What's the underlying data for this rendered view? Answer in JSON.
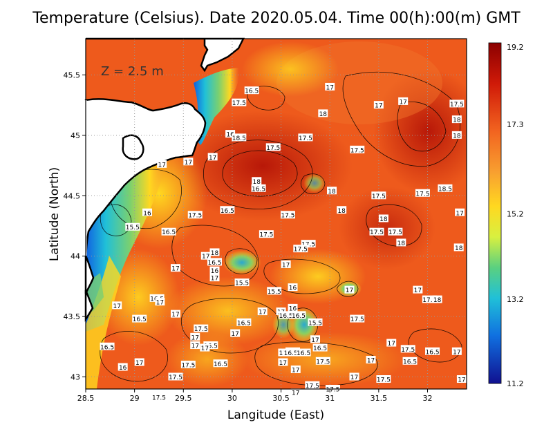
{
  "title": "Temperature (Celsius). Date 2020.05.04. Time 00(h):00(m) GMT",
  "depth_label": "Z = 2.5 m",
  "x_axis": {
    "label": "Langitude (East)",
    "ticks": [
      "28.5",
      "29",
      "29.5",
      "30",
      "30.5",
      "31",
      "31.5",
      "32"
    ],
    "range": [
      28.5,
      32.4
    ]
  },
  "y_axis": {
    "label": "Latitude (North)",
    "ticks": [
      "43",
      "43.5",
      "44",
      "44.5",
      "45",
      "45.5"
    ],
    "range": [
      42.9,
      45.8
    ]
  },
  "colorbar": {
    "ticks": [
      "19.2",
      "17.3",
      "15.2",
      "13.2",
      "11.2"
    ],
    "min": 11.2,
    "max": 19.2,
    "colors": [
      "#8b0000",
      "#d01a08",
      "#f26420",
      "#f8a030",
      "#ffd820",
      "#d8f040",
      "#5ad080",
      "#20c0d8",
      "#1070e0",
      "#101090"
    ]
  },
  "contour_labels": [
    {
      "lon": 30.2,
      "lat": 45.37,
      "text": "16.5"
    },
    {
      "lon": 31.0,
      "lat": 45.4,
      "text": "17"
    },
    {
      "lon": 30.07,
      "lat": 45.27,
      "text": "17.5"
    },
    {
      "lon": 31.5,
      "lat": 45.25,
      "text": "17"
    },
    {
      "lon": 31.75,
      "lat": 45.28,
      "text": "17"
    },
    {
      "lon": 32.3,
      "lat": 45.26,
      "text": "17.5"
    },
    {
      "lon": 30.93,
      "lat": 45.18,
      "text": "18"
    },
    {
      "lon": 32.3,
      "lat": 45.13,
      "text": "18"
    },
    {
      "lon": 29.98,
      "lat": 45.01,
      "text": "16"
    },
    {
      "lon": 30.07,
      "lat": 44.98,
      "text": "18.5"
    },
    {
      "lon": 30.75,
      "lat": 44.98,
      "text": "17.5"
    },
    {
      "lon": 32.3,
      "lat": 45.0,
      "text": "18"
    },
    {
      "lon": 30.42,
      "lat": 44.9,
      "text": "17.5"
    },
    {
      "lon": 31.28,
      "lat": 44.88,
      "text": "17.5"
    },
    {
      "lon": 29.8,
      "lat": 44.82,
      "text": "17"
    },
    {
      "lon": 29.55,
      "lat": 44.78,
      "text": "17"
    },
    {
      "lon": 29.28,
      "lat": 44.76,
      "text": "17"
    },
    {
      "lon": 30.25,
      "lat": 44.62,
      "text": "18"
    },
    {
      "lon": 30.27,
      "lat": 44.56,
      "text": "16.5"
    },
    {
      "lon": 31.02,
      "lat": 44.54,
      "text": "18"
    },
    {
      "lon": 31.5,
      "lat": 44.5,
      "text": "17.5"
    },
    {
      "lon": 31.95,
      "lat": 44.52,
      "text": "17.5"
    },
    {
      "lon": 32.18,
      "lat": 44.56,
      "text": "18.5"
    },
    {
      "lon": 29.13,
      "lat": 44.36,
      "text": "16"
    },
    {
      "lon": 29.62,
      "lat": 44.34,
      "text": "17.5"
    },
    {
      "lon": 29.95,
      "lat": 44.38,
      "text": "16.5"
    },
    {
      "lon": 30.57,
      "lat": 44.34,
      "text": "17.5"
    },
    {
      "lon": 31.12,
      "lat": 44.38,
      "text": "18"
    },
    {
      "lon": 31.55,
      "lat": 44.31,
      "text": "18"
    },
    {
      "lon": 32.33,
      "lat": 44.36,
      "text": "17"
    },
    {
      "lon": 28.98,
      "lat": 44.24,
      "text": "15.5"
    },
    {
      "lon": 29.35,
      "lat": 44.2,
      "text": "16.5"
    },
    {
      "lon": 30.35,
      "lat": 44.18,
      "text": "17.5"
    },
    {
      "lon": 31.48,
      "lat": 44.2,
      "text": "17.5"
    },
    {
      "lon": 31.67,
      "lat": 44.2,
      "text": "17.5"
    },
    {
      "lon": 31.73,
      "lat": 44.11,
      "text": "18"
    },
    {
      "lon": 30.78,
      "lat": 44.1,
      "text": "17.5"
    },
    {
      "lon": 30.7,
      "lat": 44.06,
      "text": "17.5"
    },
    {
      "lon": 29.82,
      "lat": 44.03,
      "text": "18"
    },
    {
      "lon": 29.73,
      "lat": 44.0,
      "text": "17"
    },
    {
      "lon": 32.32,
      "lat": 44.07,
      "text": "18"
    },
    {
      "lon": 29.82,
      "lat": 43.95,
      "text": "16.5"
    },
    {
      "lon": 30.55,
      "lat": 43.93,
      "text": "17"
    },
    {
      "lon": 29.42,
      "lat": 43.9,
      "text": "17"
    },
    {
      "lon": 29.82,
      "lat": 43.88,
      "text": "16"
    },
    {
      "lon": 29.82,
      "lat": 43.82,
      "text": "17"
    },
    {
      "lon": 30.1,
      "lat": 43.78,
      "text": "15.5"
    },
    {
      "lon": 30.43,
      "lat": 43.71,
      "text": "15.5"
    },
    {
      "lon": 30.62,
      "lat": 43.74,
      "text": "16"
    },
    {
      "lon": 31.2,
      "lat": 43.72,
      "text": "17"
    },
    {
      "lon": 31.9,
      "lat": 43.72,
      "text": "17"
    },
    {
      "lon": 29.23,
      "lat": 43.65,
      "text": "16.5"
    },
    {
      "lon": 29.26,
      "lat": 43.62,
      "text": "17"
    },
    {
      "lon": 32.02,
      "lat": 43.64,
      "text": "17.5"
    },
    {
      "lon": 32.1,
      "lat": 43.64,
      "text": "18"
    },
    {
      "lon": 28.82,
      "lat": 43.59,
      "text": "17"
    },
    {
      "lon": 30.62,
      "lat": 43.57,
      "text": "16"
    },
    {
      "lon": 30.5,
      "lat": 43.54,
      "text": "17"
    },
    {
      "lon": 30.31,
      "lat": 43.54,
      "text": "17"
    },
    {
      "lon": 30.55,
      "lat": 43.51,
      "text": "16.5"
    },
    {
      "lon": 30.68,
      "lat": 43.51,
      "text": "16.5"
    },
    {
      "lon": 29.42,
      "lat": 43.52,
      "text": "17"
    },
    {
      "lon": 29.05,
      "lat": 43.48,
      "text": "16.5"
    },
    {
      "lon": 31.28,
      "lat": 43.48,
      "text": "17.5"
    },
    {
      "lon": 30.12,
      "lat": 43.45,
      "text": "16.5"
    },
    {
      "lon": 30.85,
      "lat": 43.45,
      "text": "15.5"
    },
    {
      "lon": 29.68,
      "lat": 43.4,
      "text": "17.5"
    },
    {
      "lon": 30.03,
      "lat": 43.36,
      "text": "17"
    },
    {
      "lon": 30.85,
      "lat": 43.31,
      "text": "17"
    },
    {
      "lon": 29.62,
      "lat": 43.33,
      "text": "17"
    },
    {
      "lon": 31.63,
      "lat": 43.28,
      "text": "17"
    },
    {
      "lon": 28.72,
      "lat": 43.25,
      "text": "16.5"
    },
    {
      "lon": 29.62,
      "lat": 43.26,
      "text": "17"
    },
    {
      "lon": 29.78,
      "lat": 43.26,
      "text": "16.5"
    },
    {
      "lon": 29.72,
      "lat": 43.24,
      "text": "17"
    },
    {
      "lon": 30.9,
      "lat": 43.24,
      "text": "16.5"
    },
    {
      "lon": 31.8,
      "lat": 43.23,
      "text": "17.5"
    },
    {
      "lon": 30.62,
      "lat": 43.21,
      "text": "17.5"
    },
    {
      "lon": 30.52,
      "lat": 43.2,
      "text": "17"
    },
    {
      "lon": 30.6,
      "lat": 43.2,
      "text": "16.5"
    },
    {
      "lon": 30.73,
      "lat": 43.2,
      "text": "16.5"
    },
    {
      "lon": 32.05,
      "lat": 43.21,
      "text": "16.5"
    },
    {
      "lon": 32.3,
      "lat": 43.21,
      "text": "17"
    },
    {
      "lon": 31.42,
      "lat": 43.14,
      "text": "17"
    },
    {
      "lon": 31.82,
      "lat": 43.13,
      "text": "16.5"
    },
    {
      "lon": 30.93,
      "lat": 43.13,
      "text": "17.5"
    },
    {
      "lon": 30.52,
      "lat": 43.12,
      "text": "17"
    },
    {
      "lon": 29.05,
      "lat": 43.12,
      "text": "17"
    },
    {
      "lon": 29.55,
      "lat": 43.1,
      "text": "17.5"
    },
    {
      "lon": 29.88,
      "lat": 43.11,
      "text": "16.5"
    },
    {
      "lon": 28.88,
      "lat": 43.08,
      "text": "16"
    },
    {
      "lon": 30.65,
      "lat": 43.06,
      "text": "17"
    },
    {
      "lon": 29.42,
      "lat": 43.0,
      "text": "17.5"
    },
    {
      "lon": 31.25,
      "lat": 43.0,
      "text": "17"
    },
    {
      "lon": 31.55,
      "lat": 42.98,
      "text": "17.5"
    },
    {
      "lon": 32.35,
      "lat": 42.98,
      "text": "17"
    },
    {
      "lon": 30.82,
      "lat": 42.93,
      "text": "17.5"
    },
    {
      "lon": 31.03,
      "lat": 42.9,
      "text": "17.5"
    },
    {
      "lon": 30.65,
      "lat": 42.87,
      "text": "17"
    },
    {
      "lon": 29.25,
      "lat": 42.83,
      "text": "17.5"
    }
  ]
}
